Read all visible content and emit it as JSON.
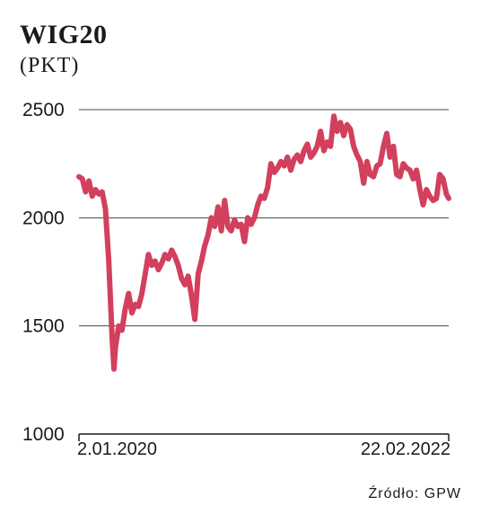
{
  "chart_data": {
    "type": "line",
    "title": "WIG20",
    "subtitle": "(PKT)",
    "xlabel": "",
    "ylabel": "",
    "ylim": [
      1000,
      2500
    ],
    "yticks": [
      "2500",
      "2000",
      "1500",
      "1000"
    ],
    "x_start_label": "2.01.2020",
    "x_end_label": "22.02.2022",
    "grid": true,
    "line_color": "#d2405e",
    "series": [
      {
        "x": [
          "2020-01-02",
          "2020-01-09",
          "2020-01-16",
          "2020-01-23",
          "2020-01-30",
          "2020-02-06",
          "2020-02-13",
          "2020-02-20",
          "2020-02-27",
          "2020-03-05",
          "2020-03-12",
          "2020-03-16",
          "2020-03-19",
          "2020-03-26",
          "2020-04-02",
          "2020-04-09",
          "2020-04-16",
          "2020-04-23",
          "2020-04-30",
          "2020-05-07",
          "2020-05-14",
          "2020-05-21",
          "2020-05-28",
          "2020-06-04",
          "2020-06-11",
          "2020-06-18",
          "2020-06-25",
          "2020-07-02",
          "2020-07-09",
          "2020-07-16",
          "2020-07-23",
          "2020-07-30",
          "2020-08-06",
          "2020-08-13",
          "2020-08-20",
          "2020-08-27",
          "2020-09-03",
          "2020-09-10",
          "2020-09-17",
          "2020-09-24",
          "2020-10-01",
          "2020-10-08",
          "2020-10-15",
          "2020-10-22",
          "2020-10-29",
          "2020-11-05",
          "2020-11-12",
          "2020-11-19",
          "2020-11-26",
          "2020-12-03",
          "2020-12-10",
          "2020-12-17",
          "2020-12-24",
          "2020-12-31",
          "2021-01-07",
          "2021-01-14",
          "2021-01-21",
          "2021-01-28",
          "2021-02-04",
          "2021-02-11",
          "2021-02-18",
          "2021-02-25",
          "2021-03-04",
          "2021-03-11",
          "2021-03-18",
          "2021-03-25",
          "2021-04-01",
          "2021-04-08",
          "2021-04-15",
          "2021-04-22",
          "2021-04-29",
          "2021-05-06",
          "2021-05-13",
          "2021-05-20",
          "2021-05-27",
          "2021-06-03",
          "2021-06-10",
          "2021-06-17",
          "2021-06-24",
          "2021-07-01",
          "2021-07-08",
          "2021-07-15",
          "2021-07-22",
          "2021-07-29",
          "2021-08-05",
          "2021-08-12",
          "2021-08-19",
          "2021-08-26",
          "2021-09-02",
          "2021-09-09",
          "2021-09-16",
          "2021-09-23",
          "2021-09-30",
          "2021-10-07",
          "2021-10-14",
          "2021-10-21",
          "2021-10-28",
          "2021-11-04",
          "2021-11-11",
          "2021-11-18",
          "2021-11-25",
          "2021-12-02",
          "2021-12-09",
          "2021-12-16",
          "2021-12-23",
          "2021-12-30",
          "2022-01-06",
          "2022-01-13",
          "2022-01-20",
          "2022-01-27",
          "2022-02-03",
          "2022-02-10",
          "2022-02-17",
          "2022-02-22"
        ],
        "values": [
          2190,
          2180,
          2120,
          2170,
          2100,
          2130,
          2110,
          2120,
          2040,
          1800,
          1450,
          1300,
          1400,
          1500,
          1480,
          1580,
          1650,
          1560,
          1600,
          1590,
          1650,
          1740,
          1830,
          1780,
          1800,
          1760,
          1790,
          1830,
          1810,
          1850,
          1820,
          1780,
          1720,
          1690,
          1730,
          1640,
          1530,
          1740,
          1800,
          1870,
          1920,
          2000,
          1960,
          2050,
          1940,
          2080,
          1960,
          1940,
          1990,
          1960,
          1970,
          1890,
          2000,
          1970,
          2000,
          2060,
          2100,
          2090,
          2140,
          2250,
          2210,
          2230,
          2260,
          2240,
          2280,
          2220,
          2270,
          2290,
          2260,
          2310,
          2340,
          2280,
          2300,
          2330,
          2400,
          2310,
          2350,
          2330,
          2470,
          2400,
          2440,
          2380,
          2430,
          2410,
          2330,
          2290,
          2260,
          2160,
          2260,
          2200,
          2190,
          2240,
          2250,
          2330,
          2390,
          2280,
          2330,
          2200,
          2190,
          2250,
          2230,
          2220,
          2180,
          2220,
          2130,
          2060,
          2130,
          2100,
          2080,
          2090,
          2200,
          2180,
          2110,
          2090
        ]
      }
    ]
  },
  "source": "Źródło: GPW"
}
